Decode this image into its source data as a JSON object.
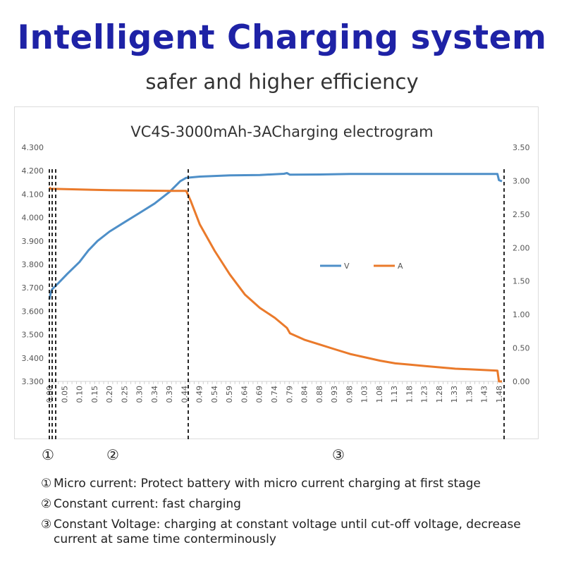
{
  "header": {
    "title": "Intelligent Charging system",
    "subtitle": "safer and higher efficiency"
  },
  "chart_data": {
    "type": "line",
    "title": "VC4S-3000mAh-3ACharging electrogram",
    "x": {
      "ticks": [
        "0.00",
        "0.05",
        "0.10",
        "0.15",
        "0.20",
        "0.25",
        "0.30",
        "0.34",
        "0.39",
        "0.44",
        "0.49",
        "0.54",
        "0.59",
        "0.64",
        "0.69",
        "0.74",
        "0.79",
        "0.84",
        "0.88",
        "0.93",
        "0.98",
        "1.03",
        "1.08",
        "1.13",
        "1.18",
        "1.23",
        "1.28",
        "1.33",
        "1.38",
        "1.43",
        "1.48"
      ],
      "range": [
        0.0,
        1.505
      ]
    },
    "y_left": {
      "ticks": [
        "4.300",
        "4.200",
        "4.100",
        "4.000",
        "3.900",
        "3.800",
        "3.700",
        "3.600",
        "3.500",
        "3.400",
        "3.300"
      ],
      "range": [
        3.3,
        4.3
      ]
    },
    "y_right": {
      "ticks": [
        "3.50",
        "3.00",
        "2.50",
        "2.00",
        "1.50",
        "1.00",
        "0.50",
        "0.00"
      ],
      "range": [
        0.0,
        3.5
      ]
    },
    "series": [
      {
        "name": "V",
        "axis": "left",
        "color": "#4e8fc8",
        "points": [
          [
            0.0,
            3.65
          ],
          [
            0.005,
            3.68
          ],
          [
            0.01,
            3.695
          ],
          [
            0.03,
            3.72
          ],
          [
            0.06,
            3.76
          ],
          [
            0.1,
            3.81
          ],
          [
            0.13,
            3.86
          ],
          [
            0.16,
            3.9
          ],
          [
            0.2,
            3.94
          ],
          [
            0.25,
            3.98
          ],
          [
            0.3,
            4.02
          ],
          [
            0.35,
            4.06
          ],
          [
            0.4,
            4.11
          ],
          [
            0.435,
            4.155
          ],
          [
            0.455,
            4.17
          ],
          [
            0.5,
            4.175
          ],
          [
            0.6,
            4.18
          ],
          [
            0.7,
            4.182
          ],
          [
            0.78,
            4.187
          ],
          [
            0.79,
            4.19
          ],
          [
            0.8,
            4.183
          ],
          [
            0.9,
            4.184
          ],
          [
            1.0,
            4.186
          ],
          [
            1.1,
            4.186
          ],
          [
            1.2,
            4.186
          ],
          [
            1.3,
            4.186
          ],
          [
            1.4,
            4.186
          ],
          [
            1.49,
            4.186
          ],
          [
            1.495,
            4.16
          ],
          [
            1.505,
            4.155
          ]
        ]
      },
      {
        "name": "A",
        "axis": "right",
        "color": "#ea7a2b",
        "points": [
          [
            0.0,
            2.9
          ],
          [
            0.005,
            2.88
          ],
          [
            0.1,
            2.87
          ],
          [
            0.2,
            2.86
          ],
          [
            0.3,
            2.855
          ],
          [
            0.4,
            2.85
          ],
          [
            0.455,
            2.85
          ],
          [
            0.47,
            2.7
          ],
          [
            0.5,
            2.35
          ],
          [
            0.55,
            1.95
          ],
          [
            0.6,
            1.6
          ],
          [
            0.65,
            1.3
          ],
          [
            0.7,
            1.1
          ],
          [
            0.75,
            0.95
          ],
          [
            0.79,
            0.8
          ],
          [
            0.8,
            0.72
          ],
          [
            0.85,
            0.62
          ],
          [
            0.9,
            0.55
          ],
          [
            0.95,
            0.48
          ],
          [
            1.0,
            0.41
          ],
          [
            1.05,
            0.36
          ],
          [
            1.1,
            0.31
          ],
          [
            1.15,
            0.27
          ],
          [
            1.2,
            0.25
          ],
          [
            1.25,
            0.23
          ],
          [
            1.3,
            0.21
          ],
          [
            1.35,
            0.19
          ],
          [
            1.4,
            0.18
          ],
          [
            1.49,
            0.16
          ],
          [
            1.495,
            0.0
          ],
          [
            1.505,
            0.0
          ]
        ]
      }
    ],
    "stage_markers": [
      {
        "x": 0.0,
        "label": "①"
      },
      {
        "x": 0.45,
        "label": "②"
      },
      {
        "x": 1.495,
        "label": "③"
      }
    ],
    "legend": {
      "placement": "middle-right",
      "items": [
        "V",
        "A"
      ]
    },
    "grid": false
  },
  "notes": [
    {
      "symbol": "①",
      "text": "Micro current: Protect battery with micro current charging at first stage"
    },
    {
      "symbol": "②",
      "text": "Constant current: fast charging"
    },
    {
      "symbol": "③",
      "text": "Constant Voltage: charging at constant voltage until cut-off voltage, decrease",
      "continuation": "current at same time conterminously"
    }
  ]
}
